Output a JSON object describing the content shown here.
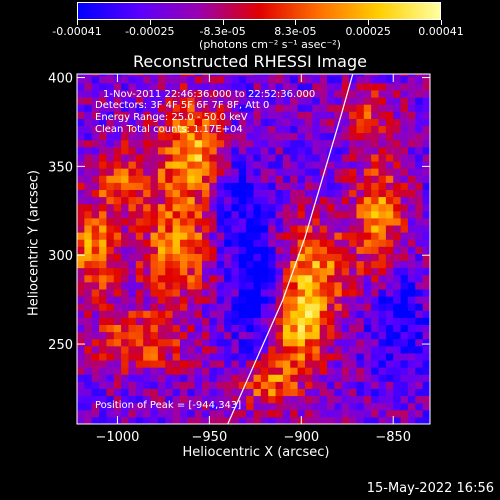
{
  "colorbar": {
    "ticks": [
      "-0.00041",
      "-0.00025",
      "-8.3e-05",
      "8.3e-05",
      "0.00025",
      "0.00041"
    ],
    "units": "(photons cm⁻² s⁻¹ asec⁻²)",
    "colors": [
      "#0000ff",
      "#5a00ff",
      "#9a00b0",
      "#e00000",
      "#ff7000",
      "#ffd000",
      "#ffffa0"
    ]
  },
  "chart_data": {
    "type": "heatmap",
    "title": "Reconstructed RHESSI Image",
    "xlabel": "Heliocentric X (arcsec)",
    "ylabel": "Heliocentric Y (arcsec)",
    "xlim": [
      -1022,
      -830
    ],
    "ylim": [
      205,
      402
    ],
    "x_ticks": [
      -1000,
      -950,
      -900,
      -850
    ],
    "y_ticks": [
      250,
      300,
      350,
      400
    ],
    "x_tick_labels": [
      "−1000",
      "−950",
      "−900",
      "−850"
    ],
    "y_tick_labels": [
      "250",
      "300",
      "350",
      "400"
    ],
    "annotations": [
      "1-Nov-2011 22:46:36.000 to 22:52:36.000",
      "Detectors: 3F 4F 5F 6F 7F 8F, Att 0",
      "Energy Range: 25.0 - 50.0 keV",
      "Clean     Total counts: 1.17E+04",
      "Position of Peak = [-944,343]"
    ],
    "limb_curve": [
      [
        -940,
        205
      ],
      [
        -925,
        240
      ],
      [
        -910,
        275
      ],
      [
        -898,
        310
      ],
      [
        -888,
        345
      ],
      [
        -878,
        380
      ],
      [
        -872,
        402
      ]
    ],
    "sources": [
      {
        "x": -960,
        "y": 355,
        "amp": 1.0,
        "sx": 14,
        "sy": 22
      },
      {
        "x": -970,
        "y": 300,
        "amp": 0.85,
        "sx": 14,
        "sy": 18
      },
      {
        "x": -1015,
        "y": 300,
        "amp": 0.8,
        "sx": 10,
        "sy": 18
      },
      {
        "x": -990,
        "y": 250,
        "amp": 0.7,
        "sx": 18,
        "sy": 12
      },
      {
        "x": -1000,
        "y": 340,
        "amp": 0.6,
        "sx": 12,
        "sy": 14
      },
      {
        "x": -895,
        "y": 290,
        "amp": 0.9,
        "sx": 12,
        "sy": 20
      },
      {
        "x": -905,
        "y": 255,
        "amp": 0.85,
        "sx": 12,
        "sy": 16
      },
      {
        "x": -860,
        "y": 320,
        "amp": 0.8,
        "sx": 10,
        "sy": 24
      },
      {
        "x": -920,
        "y": 225,
        "amp": 0.7,
        "sx": 12,
        "sy": 10
      },
      {
        "x": -865,
        "y": 380,
        "amp": 0.5,
        "sx": 10,
        "sy": 10
      },
      {
        "x": -940,
        "y": 330,
        "amp": -0.5,
        "sx": 10,
        "sy": 30
      },
      {
        "x": -925,
        "y": 275,
        "amp": -0.6,
        "sx": 8,
        "sy": 25
      },
      {
        "x": -850,
        "y": 260,
        "amp": -0.5,
        "sx": 10,
        "sy": 20
      }
    ]
  },
  "footer": {
    "date": "15-May-2022 16:56"
  }
}
